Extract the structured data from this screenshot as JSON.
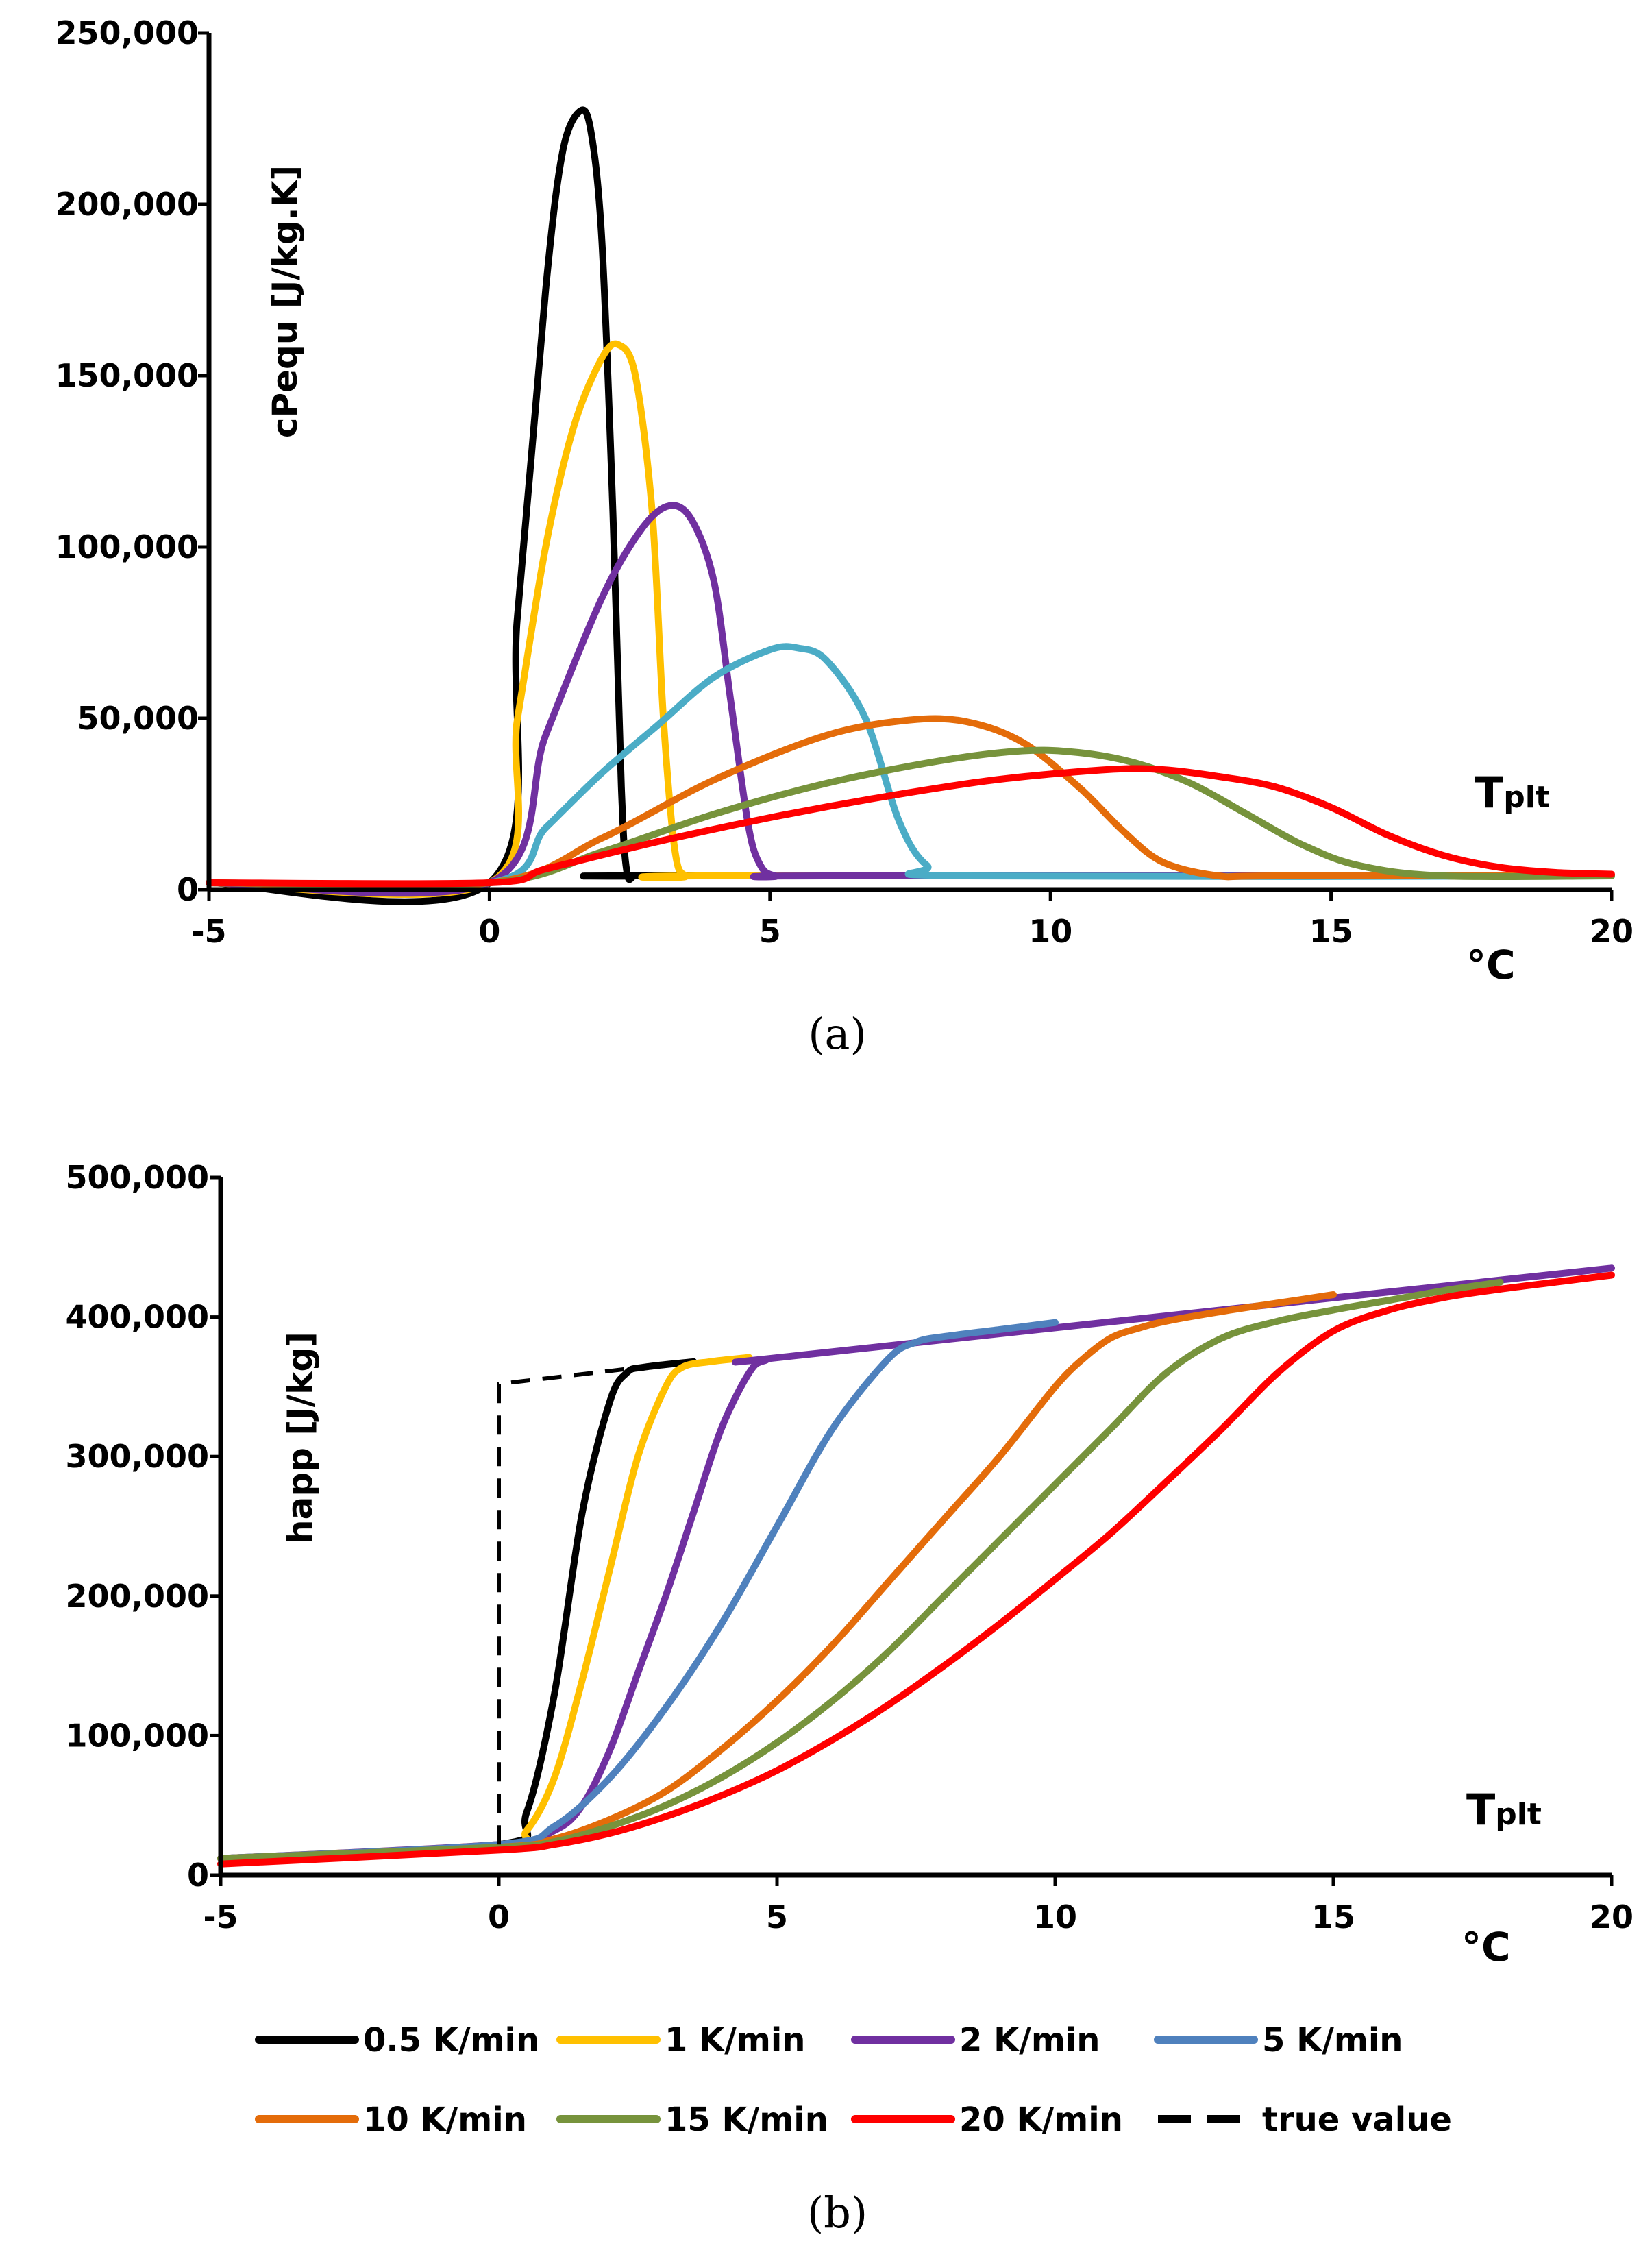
{
  "figure": {
    "label_a": "(a)",
    "label_b": "(b)"
  },
  "chart_data": [
    {
      "type": "line",
      "panel": "a",
      "ylabel": "cPequ [J/kg.K]",
      "xlabel_main": "T",
      "xlabel_sub": "plt",
      "xunit": "°C",
      "xlim": [
        -5,
        20
      ],
      "ylim": [
        0,
        250000
      ],
      "xticks": [
        "-5",
        "0",
        "5",
        "10",
        "15",
        "20"
      ],
      "yticks": [
        "0",
        "50,000",
        "100,000",
        "150,000",
        "200,000",
        "250,000"
      ],
      "grid": false,
      "series": [
        {
          "name": "0.5 K/min",
          "color": "#000000",
          "x": [
            -5,
            0,
            0.5,
            1.0,
            1.3,
            1.6,
            1.8,
            2.0,
            2.2,
            2.35,
            2.45,
            2.6,
            3,
            20
          ],
          "y": [
            2000,
            2000,
            80000,
            175000,
            215000,
            227000,
            222000,
            190000,
            110000,
            30000,
            5000,
            4000,
            4000,
            4000
          ]
        },
        {
          "name": "1 K/min",
          "color": "#FFC000",
          "x": [
            -5,
            0,
            0.5,
            1.0,
            1.5,
            2.0,
            2.3,
            2.6,
            2.9,
            3.1,
            3.3,
            3.5,
            4,
            20
          ],
          "y": [
            2000,
            2000,
            50000,
            100000,
            135000,
            155000,
            159000,
            150000,
            110000,
            50000,
            12000,
            4000,
            4000,
            4000
          ]
        },
        {
          "name": "2 K/min",
          "color": "#7030A0",
          "x": [
            -5,
            0,
            1,
            2,
            2.7,
            3.2,
            3.6,
            4.0,
            4.3,
            4.6,
            4.8,
            5.1,
            6,
            20
          ],
          "y": [
            2000,
            2000,
            45000,
            85000,
            105000,
            112000,
            108000,
            90000,
            55000,
            20000,
            8000,
            4000,
            4000,
            4000
          ]
        },
        {
          "name": "5 K/min",
          "color": "#4BACC6",
          "x": [
            -5,
            0,
            1,
            2,
            3,
            4,
            5,
            5.5,
            6,
            6.7,
            7.3,
            7.8,
            8.5,
            20
          ],
          "y": [
            2000,
            2000,
            18000,
            34000,
            48000,
            62000,
            70000,
            70500,
            67000,
            50000,
            20000,
            7000,
            4000,
            4000
          ]
        },
        {
          "name": "10 K/min",
          "color": "#E46C0A",
          "x": [
            -5,
            0,
            2,
            4,
            6,
            7.5,
            8.5,
            9.5,
            10.5,
            11.3,
            12,
            13,
            14,
            20
          ],
          "y": [
            2000,
            2000,
            15000,
            32000,
            45000,
            49500,
            49000,
            43000,
            30000,
            17000,
            8000,
            4000,
            4000,
            4000
          ]
        },
        {
          "name": "15 K/min",
          "color": "#77933C",
          "x": [
            -5,
            0,
            2,
            4,
            6,
            8,
            9.5,
            10.5,
            11.5,
            12.5,
            13.5,
            14.5,
            15.5,
            17,
            20
          ],
          "y": [
            2000,
            2000,
            11000,
            22000,
            31000,
            37500,
            40500,
            40000,
            37000,
            31000,
            22000,
            13000,
            7000,
            4000,
            4000
          ]
        },
        {
          "name": "20 K/min",
          "color": "#FF0000",
          "x": [
            -5,
            0,
            1,
            3,
            5,
            7,
            9,
            11,
            12,
            13,
            14,
            15,
            16,
            17,
            18,
            19,
            20
          ],
          "y": [
            2000,
            2000,
            6000,
            14000,
            21000,
            27000,
            32000,
            35000,
            35000,
            33000,
            30000,
            24000,
            16000,
            10000,
            6500,
            5000,
            4500
          ]
        }
      ]
    },
    {
      "type": "line",
      "panel": "b",
      "ylabel": "happ [J/kg]",
      "xlabel_main": "T",
      "xlabel_sub": "plt",
      "xunit": "°C",
      "xlim": [
        -5,
        20
      ],
      "ylim": [
        0,
        500000
      ],
      "xticks": [
        "-5",
        "0",
        "5",
        "10",
        "15",
        "20"
      ],
      "yticks": [
        "0",
        "100,000",
        "200,000",
        "300,000",
        "400,000",
        "500,000"
      ],
      "grid": false,
      "series": [
        {
          "name": "0.5 K/min",
          "color": "#000000",
          "x": [
            -5,
            0,
            0.5,
            1.0,
            1.5,
            2.0,
            2.3,
            2.6,
            3.5
          ],
          "y": [
            12000,
            22000,
            45000,
            130000,
            260000,
            340000,
            360000,
            364000,
            368000
          ]
        },
        {
          "name": "1 K/min",
          "color": "#FFC000",
          "x": [
            -5,
            0,
            0.5,
            1.0,
            1.5,
            2.0,
            2.5,
            3.0,
            3.3,
            3.8,
            4.5
          ],
          "y": [
            12000,
            22000,
            32000,
            70000,
            140000,
            220000,
            300000,
            350000,
            364000,
            368000,
            371000
          ]
        },
        {
          "name": "2 K/min",
          "color": "#7030A0",
          "x": [
            -5,
            0,
            1,
            1.5,
            2,
            2.5,
            3,
            3.5,
            4.0,
            4.5,
            4.8,
            5.5,
            20
          ],
          "y": [
            12000,
            22000,
            32000,
            50000,
            90000,
            145000,
            200000,
            260000,
            320000,
            360000,
            369000,
            373000,
            435000
          ]
        },
        {
          "name": "5 K/min",
          "color": "#4F81BD",
          "x": [
            -5,
            0,
            1,
            2,
            3,
            4,
            5,
            6,
            7,
            7.5,
            8,
            9,
            10
          ],
          "y": [
            12000,
            22000,
            35000,
            70000,
            120000,
            180000,
            250000,
            320000,
            370000,
            382000,
            386000,
            391000,
            396000
          ]
        },
        {
          "name": "10 K/min",
          "color": "#E46C0A",
          "x": [
            -5,
            0,
            1,
            2,
            3,
            4,
            5,
            6,
            7,
            8,
            9,
            10,
            10.5,
            11,
            11.5,
            12,
            13,
            14,
            15
          ],
          "y": [
            12000,
            20000,
            26000,
            40000,
            60000,
            90000,
            125000,
            165000,
            210000,
            255000,
            300000,
            350000,
            370000,
            385000,
            392000,
            397000,
            404000,
            410000,
            416000
          ]
        },
        {
          "name": "15 K/min",
          "color": "#77933C",
          "x": [
            -5,
            0,
            1,
            2,
            3,
            4,
            5,
            6,
            7,
            8,
            9,
            10,
            11,
            12,
            13,
            14,
            15,
            16,
            17,
            18
          ],
          "y": [
            12000,
            20000,
            24000,
            35000,
            50000,
            70000,
            95000,
            125000,
            160000,
            200000,
            240000,
            280000,
            320000,
            360000,
            385000,
            397000,
            405000,
            412000,
            419000,
            425000
          ]
        },
        {
          "name": "20 K/min",
          "color": "#FF0000",
          "x": [
            -5,
            0,
            1,
            2,
            3,
            4,
            5,
            6,
            7,
            8,
            9,
            10,
            11,
            12,
            13,
            14,
            15,
            16,
            17,
            18,
            19,
            20
          ],
          "y": [
            8000,
            18000,
            22000,
            30000,
            42000,
            57000,
            75000,
            97000,
            122000,
            150000,
            180000,
            212000,
            245000,
            282000,
            320000,
            360000,
            390000,
            405000,
            414000,
            420000,
            425000,
            430000
          ]
        },
        {
          "name": "true value",
          "color": "#000000",
          "dashed": true,
          "x": [
            0,
            0,
            3
          ],
          "y": [
            22000,
            352000,
            366000
          ]
        }
      ]
    }
  ],
  "legend": [
    {
      "label": "0.5 K/min",
      "color": "#000000"
    },
    {
      "label": "1 K/min",
      "color": "#FFC000"
    },
    {
      "label": "2 K/min",
      "color": "#7030A0"
    },
    {
      "label": "5 K/min",
      "color": "#4F81BD"
    },
    {
      "label": "10 K/min",
      "color": "#E46C0A"
    },
    {
      "label": "15 K/min",
      "color": "#77933C"
    },
    {
      "label": "20 K/min",
      "color": "#FF0000"
    },
    {
      "label": "true value",
      "color": "#000000",
      "dashed": true
    }
  ]
}
